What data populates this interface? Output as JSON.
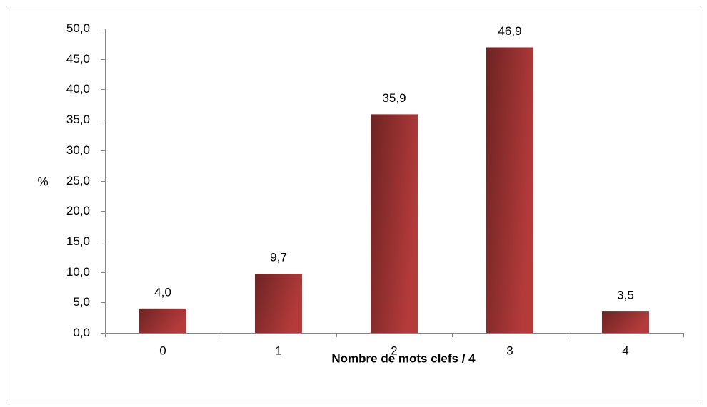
{
  "chart_data": {
    "type": "bar",
    "x_label": "Nombre de mots clefs / 4",
    "y_label": "%",
    "categories": [
      "0",
      "1",
      "2",
      "3",
      "4"
    ],
    "values": [
      4.0,
      9.7,
      35.9,
      46.9,
      3.5
    ],
    "value_labels": [
      "4,0",
      "9,7",
      "35,9",
      "46,9",
      "3,5"
    ],
    "color": "#b53b3b",
    "ylim": [
      0,
      50
    ],
    "yticks": [
      {
        "value": 0,
        "label": "0,0"
      },
      {
        "value": 5,
        "label": "5,0"
      },
      {
        "value": 10,
        "label": "10,0"
      },
      {
        "value": 15,
        "label": "15,0"
      },
      {
        "value": 20,
        "label": "20,0"
      },
      {
        "value": 25,
        "label": "25,0"
      },
      {
        "value": 30,
        "label": "30,0"
      },
      {
        "value": 35,
        "label": "35,0"
      },
      {
        "value": 40,
        "label": "40,0"
      },
      {
        "value": 45,
        "label": "45,0"
      },
      {
        "value": 50,
        "label": "50,0"
      }
    ],
    "grid": false
  }
}
